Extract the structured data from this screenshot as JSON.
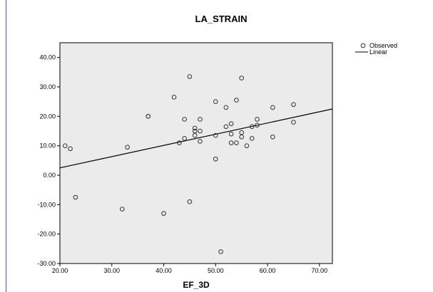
{
  "chart_data": {
    "type": "scatter",
    "title": "LA_STRAIN",
    "xlabel": "EF_3D",
    "ylabel": "",
    "xlim": [
      20,
      72.5
    ],
    "ylim": [
      -30,
      45
    ],
    "xticks": [
      "20.00",
      "30.00",
      "40.00",
      "50.00",
      "60.00",
      "70.00"
    ],
    "xtick_values": [
      20,
      30,
      40,
      50,
      60,
      70
    ],
    "yticks": [
      "40.00",
      "30.00",
      "20.00",
      "10.00",
      "0.00",
      "-10.00",
      "-20.00",
      "-30.00"
    ],
    "ytick_values": [
      40,
      30,
      20,
      10,
      0,
      -10,
      -20,
      -30
    ],
    "grid": false,
    "plot_background": "#ebebeb",
    "legend": {
      "placement": "top-right",
      "entries": [
        {
          "label": "Observed",
          "marker": "circle"
        },
        {
          "label": "Linear",
          "marker": "line"
        }
      ]
    },
    "series": [
      {
        "name": "Observed",
        "points": [
          [
            21,
            10
          ],
          [
            22,
            9
          ],
          [
            23,
            -7.5
          ],
          [
            32,
            -11.5
          ],
          [
            33,
            9.5
          ],
          [
            37,
            20
          ],
          [
            37,
            20
          ],
          [
            40,
            -13
          ],
          [
            42,
            26.5
          ],
          [
            43,
            11
          ],
          [
            44,
            19
          ],
          [
            44,
            12.5
          ],
          [
            45,
            33.5
          ],
          [
            45,
            -9
          ],
          [
            46,
            16
          ],
          [
            46,
            15
          ],
          [
            46,
            13.5
          ],
          [
            47,
            19
          ],
          [
            47,
            15
          ],
          [
            47,
            11.5
          ],
          [
            50,
            25
          ],
          [
            50,
            13.5
          ],
          [
            50,
            5.5
          ],
          [
            51,
            -26
          ],
          [
            52,
            23
          ],
          [
            52,
            16.5
          ],
          [
            53,
            17.5
          ],
          [
            53,
            14
          ],
          [
            53,
            11
          ],
          [
            54,
            25.5
          ],
          [
            54,
            11
          ],
          [
            55,
            33
          ],
          [
            55,
            14.5
          ],
          [
            55,
            13
          ],
          [
            56,
            10
          ],
          [
            57,
            16.5
          ],
          [
            57,
            12.5
          ],
          [
            58,
            19
          ],
          [
            58,
            17
          ],
          [
            61,
            23
          ],
          [
            61,
            13
          ],
          [
            65,
            24
          ],
          [
            65,
            18
          ]
        ]
      },
      {
        "name": "Linear",
        "line": [
          [
            20,
            2.5
          ],
          [
            72.5,
            22.5
          ]
        ]
      }
    ]
  },
  "colors": {
    "plot_background": "#ebebeb",
    "marker_stroke": "#333333",
    "line": "#000000",
    "side_rule": "#5a5a8c"
  }
}
